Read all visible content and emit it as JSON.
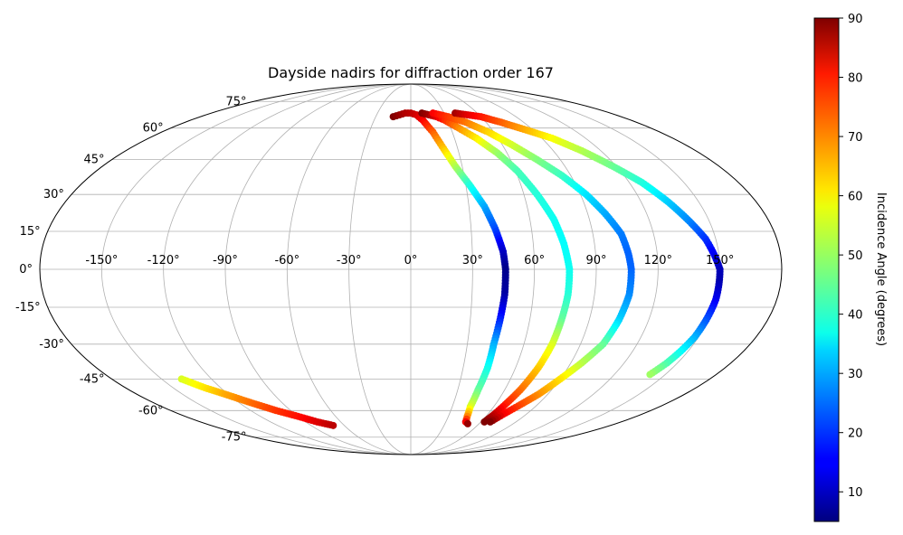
{
  "chart_data": {
    "type": "scatter",
    "projection": "mollweide",
    "title": "Dayside nadirs for diffraction order 167",
    "grid": true,
    "lon_ticks": [
      -150,
      -120,
      -90,
      -60,
      -30,
      0,
      30,
      60,
      90,
      120,
      150
    ],
    "lon_tick_labels": [
      "-150°",
      "-120°",
      "-90°",
      "-60°",
      "-30°",
      "0°",
      "30°",
      "60°",
      "90°",
      "120°",
      "150°"
    ],
    "lat_ticks": [
      75,
      60,
      45,
      30,
      15,
      0,
      -15,
      -30,
      -45,
      -60,
      -75
    ],
    "lat_tick_labels": [
      "75°",
      "60°",
      "45°",
      "30°",
      "15°",
      "0°",
      "-15°",
      "-30°",
      "-45°",
      "-60°",
      "-75°"
    ],
    "colorbar": {
      "label": "Incidence Angle (degrees)",
      "colormap": "jet",
      "range": [
        5,
        90
      ],
      "ticks": [
        10,
        20,
        30,
        40,
        50,
        60,
        70,
        80,
        90
      ],
      "tick_labels": [
        "10",
        "20",
        "30",
        "40",
        "50",
        "60",
        "70",
        "80",
        "90"
      ]
    },
    "series": [
      {
        "points": [
          [
            -15,
            66,
            90
          ],
          [
            -10,
            67,
            88
          ],
          [
            -5,
            68,
            86
          ],
          [
            0,
            68,
            85
          ],
          [
            5,
            67,
            83
          ],
          [
            10,
            64,
            80
          ],
          [
            16,
            58,
            72
          ],
          [
            21,
            50,
            63
          ],
          [
            26,
            42,
            52
          ],
          [
            32,
            34,
            40
          ],
          [
            38,
            25,
            30
          ],
          [
            42,
            16,
            22
          ],
          [
            45,
            7,
            11
          ],
          [
            46,
            0,
            6
          ],
          [
            46,
            -10,
            8
          ],
          [
            45,
            -20,
            18
          ],
          [
            44,
            -30,
            30
          ],
          [
            44,
            -40,
            38
          ],
          [
            43,
            -50,
            45
          ],
          [
            43,
            -58,
            55
          ],
          [
            45,
            -63,
            68
          ],
          [
            47,
            -66,
            80
          ],
          [
            50,
            -67,
            88
          ]
        ]
      },
      {
        "points": [
          [
            10,
            68,
            90
          ],
          [
            16,
            67,
            87
          ],
          [
            22,
            66,
            82
          ],
          [
            28,
            64,
            76
          ],
          [
            36,
            60,
            68
          ],
          [
            45,
            55,
            60
          ],
          [
            54,
            48,
            50
          ],
          [
            61,
            40,
            43
          ],
          [
            67,
            30,
            40
          ],
          [
            72,
            20,
            38
          ],
          [
            75,
            10,
            37
          ],
          [
            77,
            0,
            38
          ],
          [
            77,
            -10,
            40
          ],
          [
            76,
            -20,
            45
          ],
          [
            75,
            -30,
            55
          ],
          [
            73,
            -40,
            62
          ],
          [
            70,
            -50,
            70
          ],
          [
            67,
            -57,
            77
          ],
          [
            65,
            -62,
            84
          ],
          [
            63,
            -66,
            90
          ]
        ]
      },
      {
        "points": [
          [
            20,
            68,
            80
          ],
          [
            32,
            66,
            75
          ],
          [
            44,
            63,
            70
          ],
          [
            56,
            58,
            62
          ],
          [
            66,
            52,
            55
          ],
          [
            76,
            45,
            48
          ],
          [
            85,
            38,
            42
          ],
          [
            93,
            30,
            35
          ],
          [
            99,
            22,
            30
          ],
          [
            104,
            14,
            26
          ],
          [
            106,
            6,
            24
          ],
          [
            107,
            0,
            24
          ],
          [
            107,
            -10,
            27
          ],
          [
            105,
            -20,
            33
          ],
          [
            102,
            -30,
            45
          ],
          [
            96,
            -38,
            52
          ],
          [
            90,
            -45,
            60
          ],
          [
            84,
            -52,
            67
          ],
          [
            78,
            -57,
            73
          ],
          [
            72,
            -62,
            80
          ],
          [
            68,
            -66,
            90
          ]
        ]
      },
      {
        "points": [
          [
            40,
            68,
            87
          ],
          [
            50,
            67,
            82
          ],
          [
            60,
            66,
            78
          ],
          [
            72,
            63,
            72
          ],
          [
            85,
            59,
            65
          ],
          [
            97,
            55,
            58
          ],
          [
            108,
            49,
            52
          ],
          [
            118,
            42,
            46
          ],
          [
            127,
            35,
            40
          ],
          [
            134,
            27,
            33
          ],
          [
            140,
            19,
            27
          ],
          [
            145,
            12,
            20
          ],
          [
            148,
            5,
            14
          ],
          [
            150,
            0,
            10
          ],
          [
            150,
            -5,
            9
          ],
          [
            150,
            -12,
            14
          ],
          [
            149,
            -20,
            22
          ],
          [
            148,
            -27,
            30
          ],
          [
            146,
            -33,
            37
          ],
          [
            144,
            -38,
            43
          ],
          [
            141,
            -43,
            50
          ]
        ]
      },
      {
        "points": [
          [
            -138,
            -45,
            55
          ],
          [
            -130,
            -49,
            60
          ],
          [
            -122,
            -52,
            65
          ],
          [
            -112,
            -56,
            70
          ],
          [
            -101,
            -60,
            75
          ],
          [
            -90,
            -63,
            78
          ],
          [
            -80,
            -66,
            82
          ],
          [
            -70,
            -68,
            85
          ]
        ]
      }
    ]
  }
}
